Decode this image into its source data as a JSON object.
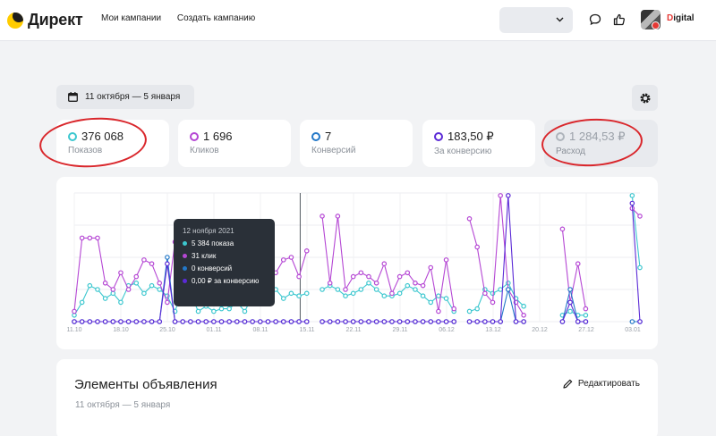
{
  "header": {
    "logo_text": "Директ",
    "nav": [
      "Мои кампании",
      "Создать кампанию"
    ],
    "account_name_first": "D",
    "account_name_rest": "igital"
  },
  "toolbar": {
    "date_range": "11 октября — 5 января"
  },
  "metrics": [
    {
      "value": "376 068",
      "label": "Показов",
      "color": "#3cc7cf"
    },
    {
      "value": "1 696",
      "label": "Кликов",
      "color": "#b547d4"
    },
    {
      "value": "7",
      "label": "Конверсий",
      "color": "#2378c8"
    },
    {
      "value": "183,50 ₽",
      "label": "За конверсию",
      "color": "#5b2ad6"
    },
    {
      "value": "1 284,53 ₽",
      "label": "Расход",
      "color": "#aeb4bb"
    }
  ],
  "tooltip": {
    "title": "12 ноября 2021",
    "rows": [
      {
        "text": "5 384 показа",
        "color": "#3cc7cf"
      },
      {
        "text": "31 клик",
        "color": "#b547d4"
      },
      {
        "text": "0 конверсий",
        "color": "#2378c8"
      },
      {
        "text": "0,00 ₽ за конверсию",
        "color": "#5b2ad6"
      }
    ]
  },
  "chart_data": {
    "type": "line",
    "x_tick_labels": [
      "11.10",
      "18.10",
      "25.10",
      "01.11",
      "08.11",
      "15.11",
      "22.11",
      "29.11",
      "06.12",
      "13.12",
      "20.12",
      "27.12",
      "03.01"
    ],
    "series": [
      {
        "name": "Показов",
        "color": "#3cc7cf",
        "values": [
          0.05,
          0.15,
          0.28,
          0.25,
          0.18,
          0.22,
          0.15,
          0.28,
          0.3,
          0.22,
          0.28,
          0.25,
          0.2,
          0.08,
          0.25,
          0.22,
          0.08,
          0.12,
          0.08,
          0.1,
          0.1,
          0.15,
          0.08,
          0.2,
          0.22,
          0.28,
          0.25,
          0.18,
          0.22,
          0.2,
          0.22,
          null,
          0.25,
          0.28,
          0.25,
          0.2,
          0.22,
          0.25,
          0.3,
          0.25,
          0.2,
          0.2,
          0.22,
          0.28,
          0.25,
          0.2,
          0.15,
          0.2,
          0.18,
          0.08,
          null,
          0.08,
          0.1,
          0.25,
          0.22,
          0.25,
          0.3,
          0.18,
          0.12,
          null,
          null,
          null,
          null,
          0.05,
          0.08,
          0.05,
          0.05,
          null,
          null,
          null,
          null,
          null,
          0.98,
          0.42
        ]
      },
      {
        "name": "Кликов",
        "color": "#b547d4",
        "values": [
          0.08,
          0.65,
          0.65,
          0.65,
          0.3,
          0.25,
          0.38,
          0.25,
          0.35,
          0.48,
          0.45,
          0.3,
          0.15,
          0.62,
          0.6,
          0.18,
          0.25,
          0.3,
          0.4,
          0.35,
          0.52,
          0.75,
          0.5,
          0.55,
          0.65,
          0.35,
          0.38,
          0.48,
          0.5,
          0.35,
          0.55,
          null,
          0.82,
          0.3,
          0.82,
          0.25,
          0.35,
          0.38,
          0.35,
          0.3,
          0.45,
          0.22,
          0.35,
          0.38,
          0.3,
          0.28,
          0.42,
          0.08,
          0.48,
          0.1,
          null,
          0.8,
          0.58,
          0.22,
          0.15,
          0.98,
          0.25,
          0.15,
          0.05,
          null,
          null,
          null,
          null,
          0.72,
          0.15,
          0.45,
          0.1,
          null,
          null,
          null,
          null,
          null,
          0.88,
          0.82
        ]
      },
      {
        "name": "Конверсий",
        "color": "#2378c8",
        "values": [
          0,
          0,
          0,
          0,
          0,
          0,
          0,
          0,
          0,
          0,
          0,
          0,
          0.5,
          0,
          0,
          0,
          0,
          0,
          0,
          0,
          0,
          0,
          0,
          0,
          0,
          0,
          0,
          0,
          0,
          0,
          0,
          null,
          0,
          0,
          0,
          0,
          0,
          0,
          0,
          0,
          0,
          0,
          0,
          0,
          0,
          0,
          0,
          0,
          0,
          0,
          null,
          0,
          0,
          0,
          0,
          0,
          0.25,
          0,
          0,
          null,
          null,
          null,
          null,
          0,
          0.25,
          0,
          0,
          null,
          null,
          null,
          null,
          null,
          0,
          0
        ]
      },
      {
        "name": "За конверсию",
        "color": "#5b2ad6",
        "values": [
          0,
          0,
          0,
          0,
          0,
          0,
          0,
          0,
          0,
          0,
          0,
          0,
          0.45,
          0,
          0,
          0,
          0,
          0,
          0,
          0,
          0,
          0,
          0,
          0,
          0,
          0,
          0,
          0,
          0,
          0,
          0,
          null,
          0,
          0,
          0,
          0,
          0,
          0,
          0,
          0,
          0,
          0,
          0,
          0,
          0,
          0,
          0,
          0,
          0,
          0,
          null,
          0,
          0,
          0,
          0,
          0,
          0.98,
          0,
          0,
          null,
          null,
          null,
          null,
          0,
          0.15,
          0,
          0,
          null,
          null,
          null,
          null,
          null,
          0.92,
          0
        ]
      }
    ]
  },
  "elements": {
    "title": "Элементы объявления",
    "date_range": "11 октября — 5 января",
    "edit_label": "Редактировать"
  }
}
